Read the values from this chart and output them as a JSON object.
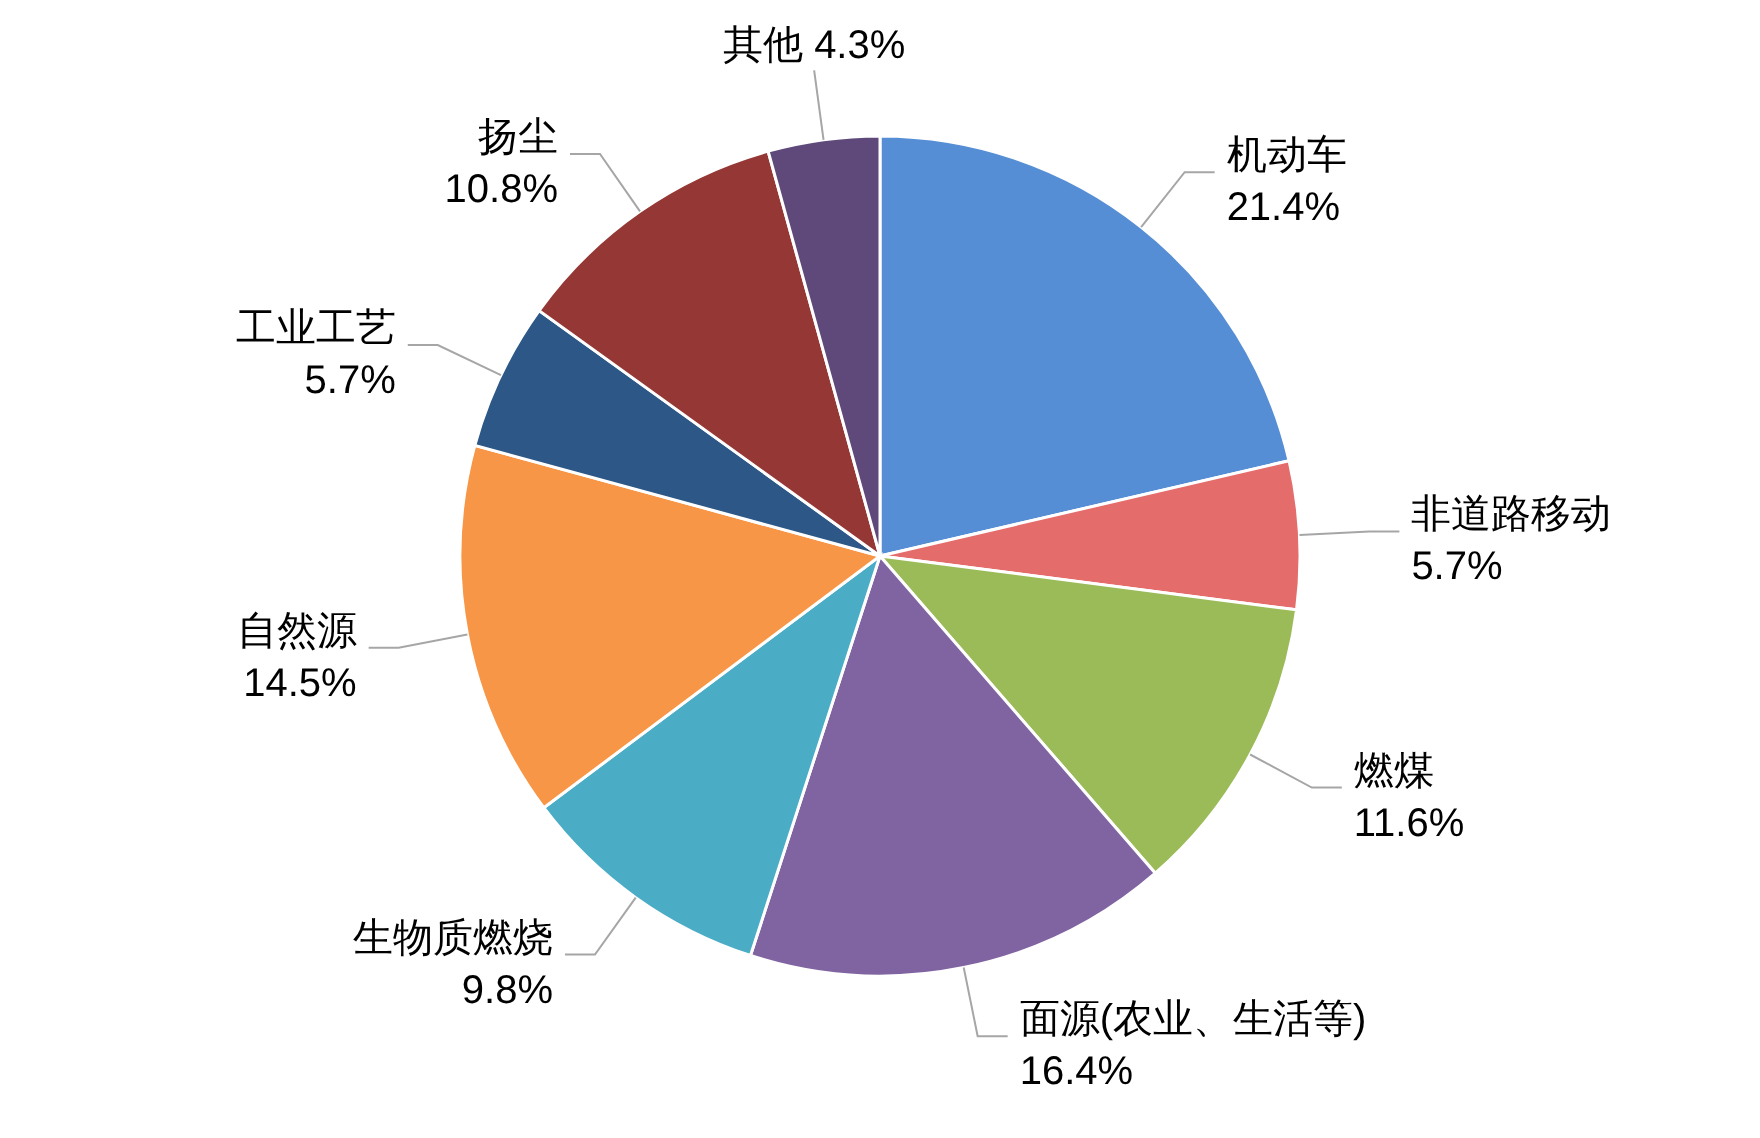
{
  "chart_data": {
    "type": "pie",
    "categories": [
      "机动车",
      "非道路移动",
      "燃煤",
      "面源(农业、生活等)",
      "生物质燃烧",
      "自然源",
      "工业工艺",
      "扬尘",
      "其他"
    ],
    "values": [
      21.4,
      5.7,
      11.6,
      16.4,
      9.8,
      14.5,
      5.7,
      10.8,
      4.3
    ],
    "value_labels": [
      "21.4%",
      "5.7%",
      "11.6%",
      "16.4%",
      "9.8%",
      "14.5%",
      "5.7%",
      "10.8%",
      "4.3%"
    ],
    "colors": [
      "#558ed5",
      "#e46c6a",
      "#9bbb59",
      "#8064a2",
      "#4bacc6",
      "#f79646",
      "#2c5786",
      "#953735",
      "#5f497a"
    ]
  }
}
